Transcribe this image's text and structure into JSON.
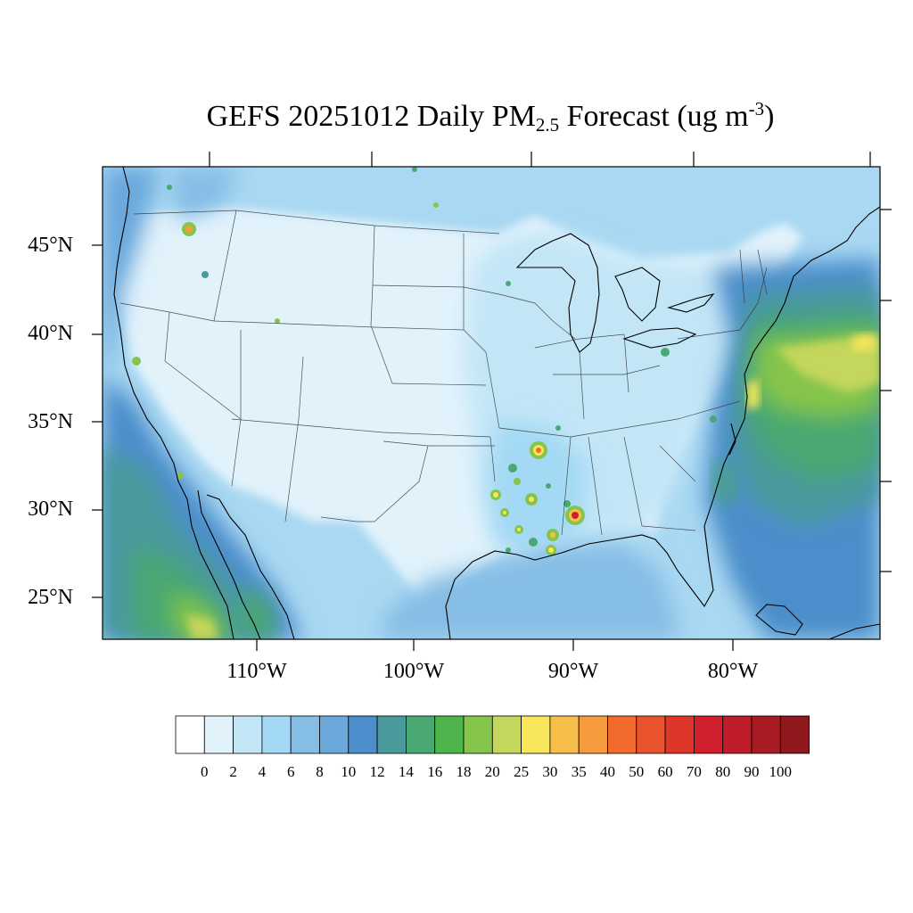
{
  "title": {
    "main": "GEFS 20251012 Daily PM",
    "sub": "2.5",
    "rest": " Forecast (ug m",
    "sup": "-3",
    "close": ")"
  },
  "lat_labels": [
    "45°N",
    "40°N",
    "35°N",
    "30°N",
    "25°N"
  ],
  "lon_labels": [
    "110°W",
    "100°W",
    "90°W",
    "80°W"
  ],
  "colorbar": {
    "colors": [
      "#ffffff",
      "#e1f2fb",
      "#c3e6f7",
      "#a3d9f4",
      "#86bde5",
      "#6aa8dc",
      "#4b8ecb",
      "#4a9a9c",
      "#4aa872",
      "#4db54b",
      "#86c54b",
      "#c4d65b",
      "#f7e65a",
      "#f7bf4a",
      "#f59a3d",
      "#f26a2d",
      "#e9532d",
      "#df362a",
      "#d1202d",
      "#bd1c28",
      "#a81b22",
      "#8e181b"
    ],
    "labels": [
      "0",
      "2",
      "4",
      "6",
      "8",
      "10",
      "12",
      "14",
      "16",
      "18",
      "20",
      "25",
      "30",
      "35",
      "40",
      "50",
      "60",
      "70",
      "80",
      "90",
      "100"
    ]
  }
}
